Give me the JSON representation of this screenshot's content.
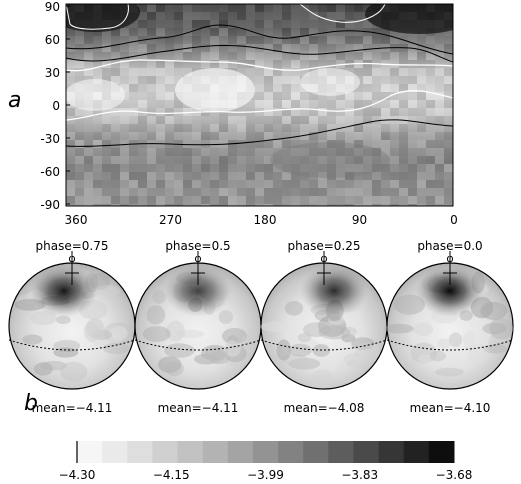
{
  "panel_a": {
    "label": "a",
    "y_ticks": [
      "90",
      "60",
      "30",
      "0",
      "-30",
      "-60",
      "-90"
    ],
    "x_ticks": [
      "360",
      "270",
      "180",
      "90",
      "0"
    ]
  },
  "panel_b": {
    "label": "b",
    "globes": [
      {
        "phase": "phase=0.75",
        "mean": "mean=−4.11",
        "spot": 0.95
      },
      {
        "phase": "phase=0.5",
        "mean": "mean=−4.11",
        "spot": 0.75
      },
      {
        "phase": "phase=0.25",
        "mean": "mean=−4.08",
        "spot": 0.85
      },
      {
        "phase": "phase=0.0",
        "mean": "mean=−4.10",
        "spot": 1.0
      }
    ],
    "pole_symbol": "φ"
  },
  "colorbar": {
    "tick_labels": [
      "−4.30",
      "−4.15",
      "−3.99",
      "−3.83",
      "−3.68"
    ],
    "shades": [
      "#f6f6f6",
      "#eaeaea",
      "#dedede",
      "#d0d0d0",
      "#c2c2c2",
      "#b3b3b3",
      "#a4a4a4",
      "#939393",
      "#828282",
      "#707070",
      "#5d5d5d",
      "#4a4a4a",
      "#363636",
      "#222222",
      "#0e0e0e"
    ]
  },
  "colors": {
    "contour_white": "#ffffff",
    "contour_black": "#000000"
  }
}
